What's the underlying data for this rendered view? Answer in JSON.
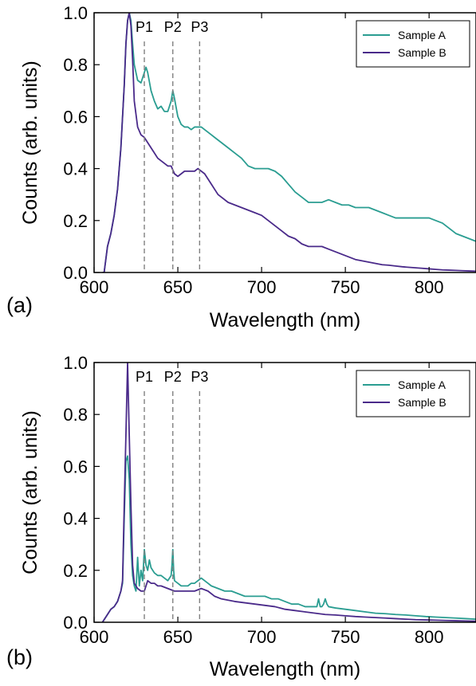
{
  "chart_data": [
    {
      "type": "line",
      "panel_label": "(a)",
      "xlabel": "Wavelength (nm)",
      "ylabel": "Counts (arb. units)",
      "xlim": [
        600,
        828
      ],
      "ylim": [
        0,
        1.0
      ],
      "xticks": [
        "600",
        "650",
        "700",
        "750",
        "800"
      ],
      "yticks": [
        "0.0",
        "0.2",
        "0.4",
        "0.6",
        "0.8",
        "1.0"
      ],
      "legend_position": "top-right",
      "peak_lines": [
        {
          "label": "P1",
          "x": 630
        },
        {
          "label": "P2",
          "x": 647
        },
        {
          "label": "P3",
          "x": 663
        }
      ],
      "series": [
        {
          "name": "Sample A",
          "color": "#2a9d91",
          "x": [
            605,
            606,
            608,
            610,
            612,
            614,
            616,
            618,
            619,
            620,
            621,
            622,
            623,
            624,
            626,
            628,
            630,
            631,
            632,
            634,
            636,
            638,
            640,
            642,
            644,
            646,
            647,
            648,
            650,
            652,
            654,
            656,
            658,
            660,
            662,
            664,
            666,
            668,
            670,
            672,
            674,
            676,
            680,
            684,
            688,
            692,
            696,
            700,
            704,
            708,
            712,
            716,
            720,
            724,
            728,
            732,
            736,
            740,
            744,
            748,
            752,
            756,
            760,
            764,
            768,
            772,
            776,
            780,
            784,
            788,
            792,
            796,
            800,
            804,
            808,
            812,
            816,
            820,
            824,
            828
          ],
          "y": [
            0.0,
            0.0,
            0.1,
            0.15,
            0.22,
            0.32,
            0.48,
            0.72,
            0.88,
            0.97,
            1.0,
            0.97,
            0.88,
            0.8,
            0.74,
            0.73,
            0.77,
            0.79,
            0.77,
            0.7,
            0.66,
            0.63,
            0.64,
            0.62,
            0.62,
            0.66,
            0.7,
            0.67,
            0.6,
            0.57,
            0.56,
            0.56,
            0.55,
            0.56,
            0.56,
            0.56,
            0.55,
            0.54,
            0.53,
            0.52,
            0.51,
            0.5,
            0.48,
            0.46,
            0.44,
            0.41,
            0.4,
            0.4,
            0.4,
            0.39,
            0.37,
            0.34,
            0.31,
            0.29,
            0.27,
            0.27,
            0.27,
            0.28,
            0.27,
            0.26,
            0.26,
            0.25,
            0.25,
            0.25,
            0.24,
            0.23,
            0.22,
            0.21,
            0.21,
            0.21,
            0.21,
            0.21,
            0.21,
            0.2,
            0.19,
            0.17,
            0.15,
            0.14,
            0.13,
            0.12
          ]
        },
        {
          "name": "Sample B",
          "color": "#4a2a8a",
          "x": [
            605,
            606,
            608,
            610,
            612,
            614,
            616,
            618,
            619,
            620,
            621,
            622,
            623,
            624,
            626,
            628,
            630,
            632,
            634,
            636,
            638,
            640,
            642,
            644,
            646,
            648,
            650,
            652,
            654,
            656,
            658,
            660,
            662,
            664,
            666,
            668,
            670,
            672,
            674,
            676,
            680,
            684,
            688,
            692,
            696,
            700,
            704,
            708,
            712,
            716,
            720,
            724,
            728,
            732,
            736,
            740,
            744,
            748,
            752,
            756,
            760,
            764,
            768,
            772,
            776,
            780,
            784,
            788,
            792,
            796,
            800,
            804,
            808,
            812,
            816,
            820,
            824,
            828
          ],
          "y": [
            0.0,
            0.0,
            0.1,
            0.15,
            0.22,
            0.32,
            0.48,
            0.72,
            0.88,
            0.97,
            1.0,
            0.95,
            0.82,
            0.66,
            0.56,
            0.53,
            0.52,
            0.5,
            0.48,
            0.46,
            0.44,
            0.43,
            0.42,
            0.41,
            0.41,
            0.38,
            0.37,
            0.38,
            0.39,
            0.39,
            0.39,
            0.39,
            0.4,
            0.39,
            0.38,
            0.36,
            0.34,
            0.32,
            0.3,
            0.29,
            0.27,
            0.26,
            0.25,
            0.24,
            0.23,
            0.22,
            0.2,
            0.18,
            0.16,
            0.14,
            0.13,
            0.11,
            0.1,
            0.1,
            0.1,
            0.09,
            0.08,
            0.07,
            0.06,
            0.05,
            0.045,
            0.04,
            0.035,
            0.03,
            0.028,
            0.025,
            0.022,
            0.02,
            0.018,
            0.016,
            0.014,
            0.012,
            0.01,
            0.009,
            0.008,
            0.007,
            0.006,
            0.005
          ]
        }
      ]
    },
    {
      "type": "line",
      "panel_label": "(b)",
      "xlabel": "Wavelength (nm)",
      "ylabel": "Counts (arb. units)",
      "xlim": [
        600,
        828
      ],
      "ylim": [
        0,
        1.0
      ],
      "xticks": [
        "600",
        "650",
        "700",
        "750",
        "800"
      ],
      "yticks": [
        "0.0",
        "0.2",
        "0.4",
        "0.6",
        "0.8",
        "1.0"
      ],
      "legend_position": "top-right",
      "peak_lines": [
        {
          "label": "P1",
          "x": 630
        },
        {
          "label": "P2",
          "x": 647
        },
        {
          "label": "P3",
          "x": 663
        }
      ],
      "series": [
        {
          "name": "Sample A",
          "color": "#2a9d91",
          "x": [
            605,
            608,
            610,
            612,
            614,
            616,
            617,
            618,
            619,
            620,
            621,
            622,
            623,
            624,
            625,
            626,
            627,
            628,
            629,
            630,
            631,
            632,
            633,
            634,
            636,
            638,
            640,
            642,
            644,
            646,
            646.5,
            647,
            647.5,
            648,
            650,
            652,
            654,
            656,
            658,
            660,
            662,
            664,
            666,
            668,
            670,
            674,
            678,
            682,
            686,
            690,
            694,
            698,
            702,
            706,
            710,
            714,
            718,
            722,
            726,
            730,
            732,
            733,
            734,
            735,
            736,
            737,
            738,
            739,
            740,
            744,
            750,
            756,
            762,
            768,
            774,
            780,
            786,
            792,
            798,
            804,
            810,
            816,
            822,
            828
          ],
          "y": [
            0.0,
            0.03,
            0.05,
            0.06,
            0.08,
            0.12,
            0.15,
            0.4,
            0.62,
            0.64,
            0.55,
            0.3,
            0.18,
            0.14,
            0.12,
            0.25,
            0.14,
            0.2,
            0.16,
            0.28,
            0.22,
            0.2,
            0.24,
            0.21,
            0.19,
            0.18,
            0.18,
            0.17,
            0.16,
            0.18,
            0.22,
            0.28,
            0.2,
            0.16,
            0.15,
            0.14,
            0.14,
            0.14,
            0.15,
            0.15,
            0.16,
            0.17,
            0.16,
            0.15,
            0.14,
            0.13,
            0.12,
            0.12,
            0.11,
            0.1,
            0.1,
            0.1,
            0.1,
            0.09,
            0.09,
            0.08,
            0.07,
            0.07,
            0.06,
            0.06,
            0.06,
            0.06,
            0.09,
            0.06,
            0.06,
            0.07,
            0.09,
            0.07,
            0.06,
            0.055,
            0.05,
            0.045,
            0.04,
            0.035,
            0.033,
            0.03,
            0.028,
            0.025,
            0.022,
            0.02,
            0.018,
            0.016,
            0.014,
            0.012
          ]
        },
        {
          "name": "Sample B",
          "color": "#4a2a8a",
          "x": [
            605,
            608,
            610,
            612,
            614,
            616,
            617,
            618,
            619,
            620,
            621,
            622,
            623,
            624,
            626,
            628,
            630,
            632,
            634,
            636,
            638,
            640,
            644,
            648,
            652,
            656,
            660,
            664,
            668,
            672,
            676,
            680,
            684,
            690,
            696,
            702,
            708,
            714,
            720,
            726,
            732,
            738,
            744,
            750,
            756,
            762,
            768,
            774,
            780,
            786,
            792,
            798,
            804,
            810,
            816,
            822,
            828
          ],
          "y": [
            0.0,
            0.03,
            0.05,
            0.06,
            0.08,
            0.12,
            0.16,
            0.45,
            0.72,
            1.0,
            0.72,
            0.45,
            0.22,
            0.15,
            0.13,
            0.12,
            0.12,
            0.16,
            0.15,
            0.15,
            0.14,
            0.14,
            0.13,
            0.12,
            0.12,
            0.12,
            0.12,
            0.13,
            0.12,
            0.1,
            0.09,
            0.085,
            0.08,
            0.075,
            0.07,
            0.065,
            0.06,
            0.05,
            0.045,
            0.04,
            0.035,
            0.03,
            0.028,
            0.025,
            0.022,
            0.02,
            0.018,
            0.016,
            0.014,
            0.012,
            0.01,
            0.009,
            0.008,
            0.007,
            0.006,
            0.005,
            0.004
          ]
        }
      ]
    }
  ]
}
